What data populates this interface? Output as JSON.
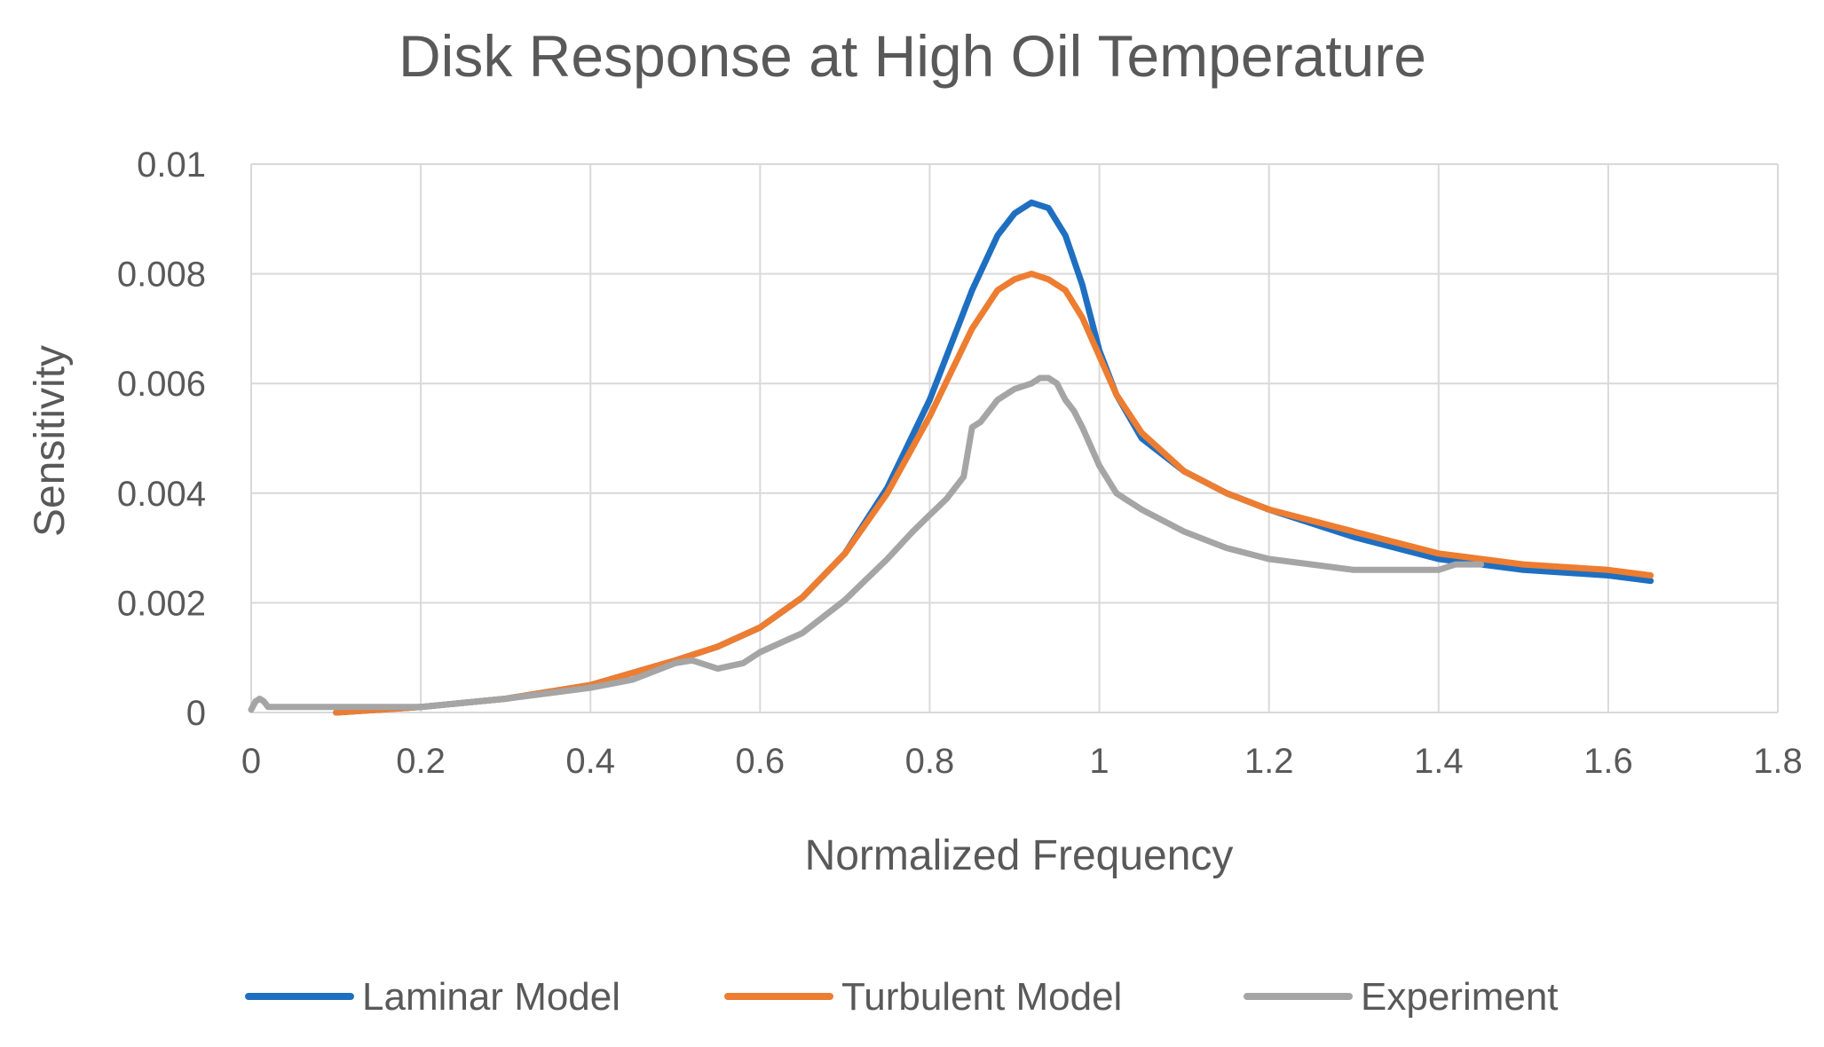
{
  "chart_data": {
    "type": "line",
    "title": "Disk Response at High Oil Temperature",
    "xlabel": "Normalized Frequency",
    "ylabel": "Sensitivity",
    "xlim": [
      0,
      1.8
    ],
    "ylim": [
      0,
      0.01
    ],
    "x_ticks": [
      "0",
      "0.2",
      "0.4",
      "0.6",
      "0.8",
      "1",
      "1.2",
      "1.4",
      "1.6",
      "1.8"
    ],
    "y_ticks": [
      "0",
      "0.002",
      "0.004",
      "0.006",
      "0.008",
      "0.01"
    ],
    "grid": true,
    "legend_position": "bottom",
    "series": [
      {
        "name": "Laminar Model",
        "color": "#1f6fc1",
        "x": [
          0.1,
          0.2,
          0.3,
          0.4,
          0.5,
          0.55,
          0.6,
          0.65,
          0.7,
          0.75,
          0.8,
          0.85,
          0.88,
          0.9,
          0.92,
          0.94,
          0.96,
          0.98,
          1.0,
          1.02,
          1.05,
          1.1,
          1.15,
          1.2,
          1.3,
          1.4,
          1.5,
          1.6,
          1.65
        ],
        "values": [
          0.0,
          0.0001,
          0.00025,
          0.0005,
          0.00095,
          0.0012,
          0.00155,
          0.0021,
          0.0029,
          0.0041,
          0.0057,
          0.0077,
          0.0087,
          0.0091,
          0.0093,
          0.0092,
          0.0087,
          0.0078,
          0.0066,
          0.0058,
          0.005,
          0.0044,
          0.004,
          0.0037,
          0.0032,
          0.0028,
          0.0026,
          0.0025,
          0.0024
        ]
      },
      {
        "name": "Turbulent Model",
        "color": "#ed7d31",
        "x": [
          0.1,
          0.2,
          0.3,
          0.4,
          0.5,
          0.55,
          0.6,
          0.65,
          0.7,
          0.75,
          0.8,
          0.85,
          0.88,
          0.9,
          0.92,
          0.94,
          0.96,
          0.98,
          1.0,
          1.02,
          1.05,
          1.1,
          1.15,
          1.2,
          1.3,
          1.4,
          1.5,
          1.6,
          1.65
        ],
        "values": [
          0.0,
          0.0001,
          0.00025,
          0.0005,
          0.00095,
          0.0012,
          0.00155,
          0.0021,
          0.0029,
          0.004,
          0.0054,
          0.007,
          0.0077,
          0.0079,
          0.008,
          0.0079,
          0.0077,
          0.0072,
          0.0065,
          0.0058,
          0.0051,
          0.0044,
          0.004,
          0.0037,
          0.0033,
          0.0029,
          0.0027,
          0.0026,
          0.0025
        ]
      },
      {
        "name": "Experiment",
        "color": "#a5a5a5",
        "x": [
          0.0,
          0.005,
          0.01,
          0.015,
          0.02,
          0.05,
          0.1,
          0.2,
          0.3,
          0.4,
          0.45,
          0.5,
          0.52,
          0.55,
          0.58,
          0.6,
          0.65,
          0.7,
          0.75,
          0.78,
          0.8,
          0.82,
          0.84,
          0.85,
          0.86,
          0.87,
          0.88,
          0.9,
          0.92,
          0.93,
          0.94,
          0.95,
          0.96,
          0.97,
          0.98,
          1.0,
          1.02,
          1.05,
          1.1,
          1.15,
          1.2,
          1.25,
          1.3,
          1.35,
          1.4,
          1.42,
          1.45
        ],
        "values": [
          5e-05,
          0.0002,
          0.00025,
          0.0002,
          0.0001,
          0.0001,
          0.0001,
          0.0001,
          0.00025,
          0.00045,
          0.0006,
          0.0009,
          0.00095,
          0.0008,
          0.0009,
          0.0011,
          0.00145,
          0.00205,
          0.0028,
          0.0033,
          0.0036,
          0.0039,
          0.0043,
          0.0052,
          0.0053,
          0.0055,
          0.0057,
          0.0059,
          0.006,
          0.0061,
          0.0061,
          0.006,
          0.0057,
          0.0055,
          0.0052,
          0.0045,
          0.004,
          0.0037,
          0.0033,
          0.003,
          0.0028,
          0.0027,
          0.0026,
          0.0026,
          0.0026,
          0.0027,
          0.0027
        ]
      }
    ]
  }
}
